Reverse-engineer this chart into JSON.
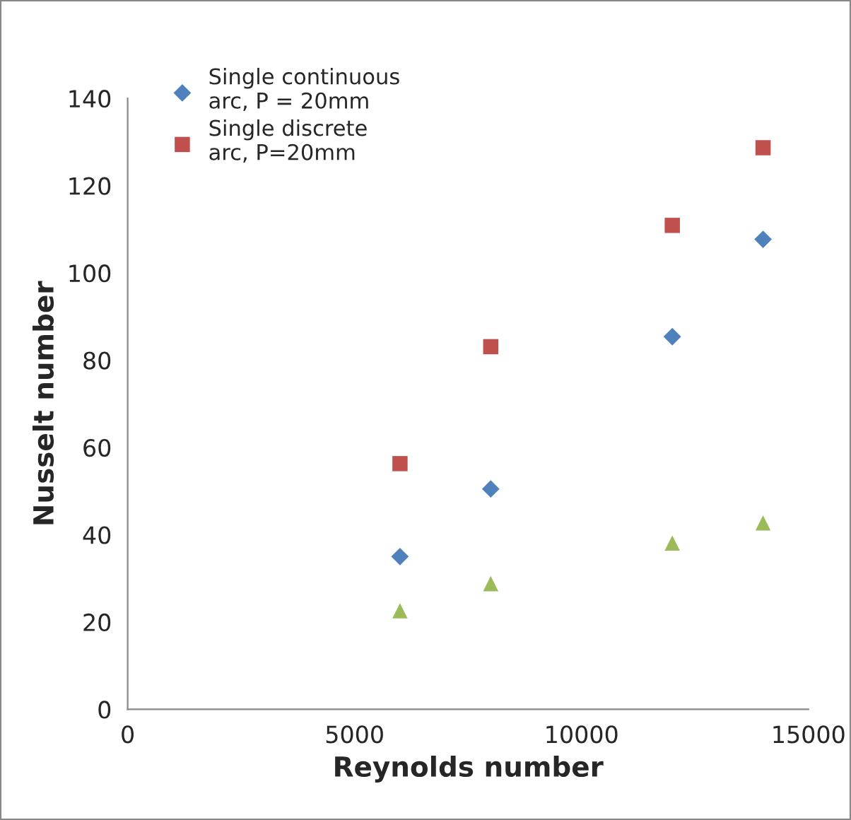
{
  "chart_data": {
    "type": "scatter",
    "xlabel": "Reynolds number",
    "ylabel": "Nusselt number",
    "x": [
      6000,
      8000,
      12000,
      14000
    ],
    "series": [
      {
        "name": "Single continuous\narc, P = 20mm",
        "color": "#4f81bd",
        "marker": "diamond",
        "values": [
          35,
          50.5,
          85.4,
          107.7
        ]
      },
      {
        "name": "Single discrete\narc, P=20mm",
        "color": "#c0504d",
        "marker": "square",
        "values": [
          56.3,
          83.1,
          110.9,
          128.7
        ]
      },
      {
        "color": "#9bbb59",
        "marker": "triangle",
        "values": [
          22.6,
          28.8,
          38.1,
          42.7
        ]
      }
    ],
    "xlim": [
      0,
      15000
    ],
    "xticks": [
      0,
      5000,
      10000,
      15000
    ],
    "ylim": [
      0,
      140
    ],
    "yticks": [
      0,
      20,
      40,
      60,
      80,
      100,
      120,
      140
    ],
    "grid": false,
    "legend": "top left"
  }
}
